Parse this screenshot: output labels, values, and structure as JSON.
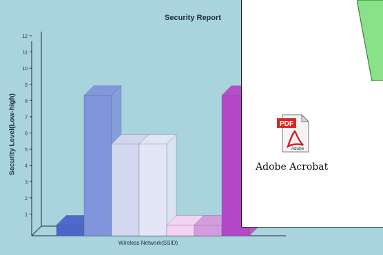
{
  "chart_data": {
    "type": "bar",
    "title": "Security Report",
    "ylabel": "Security Level(Low-high)",
    "xlabel": "Wireless Network(SSID)",
    "ylim": [
      0,
      12
    ],
    "yticks": [
      1,
      2,
      3,
      4,
      5,
      6,
      7,
      8,
      9,
      10,
      11,
      12
    ],
    "grid": false,
    "values": [
      1,
      9,
      6,
      6,
      1,
      1,
      9
    ],
    "colors": [
      "#4a66c8",
      "#7f94db",
      "#d2d8f0",
      "#e2e6f6",
      "#f4d4f2",
      "#d59be0",
      "#b547c9"
    ]
  },
  "desktop": {
    "icon_label": "Adobe Acrobat",
    "icon_name": "pdf-file-icon",
    "icon_badge": "PDF",
    "icon_brand": "Adobe"
  }
}
